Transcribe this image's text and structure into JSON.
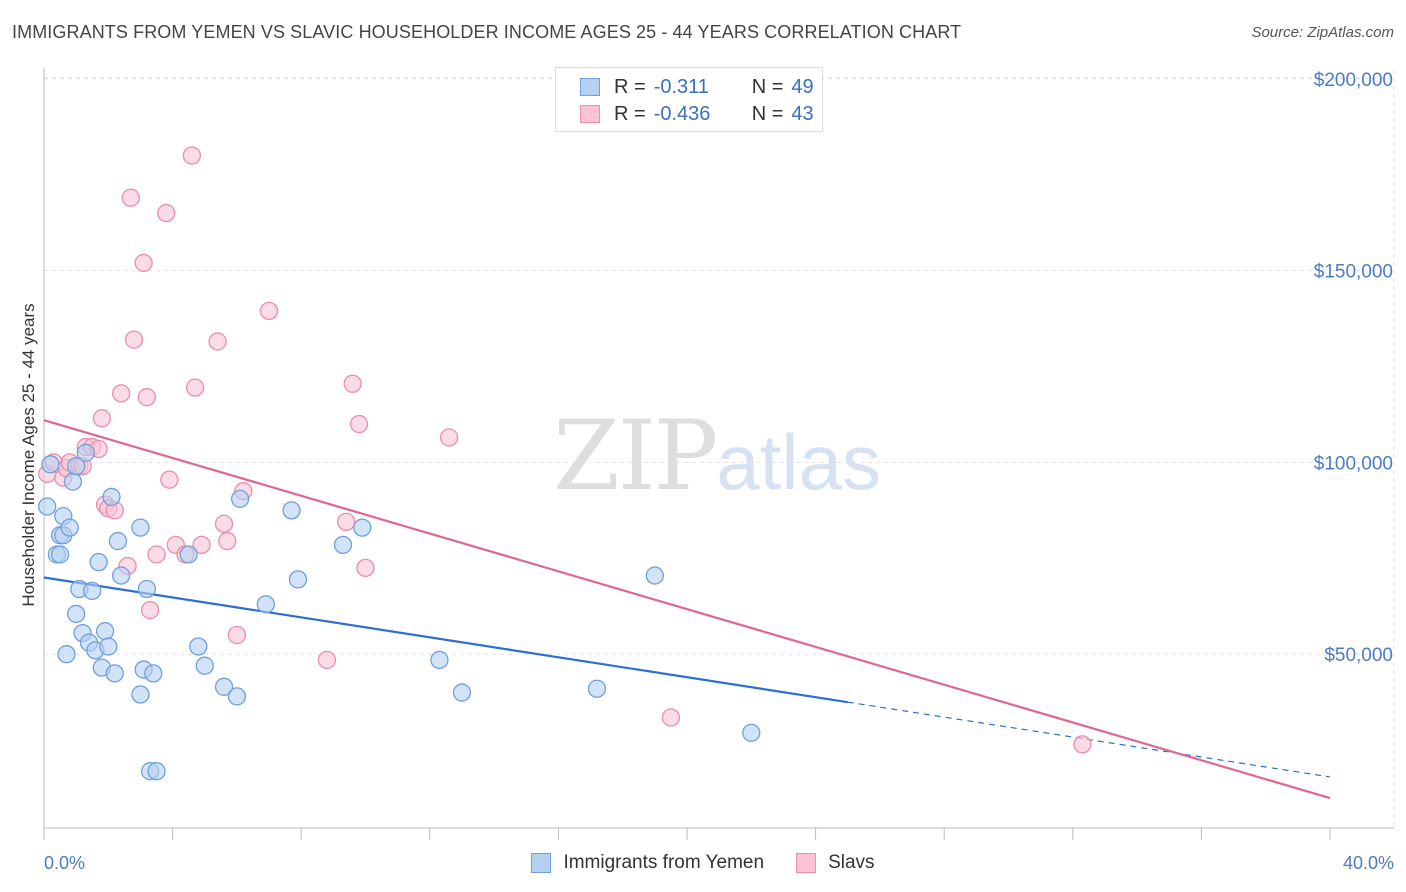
{
  "header": {
    "title": "IMMIGRANTS FROM YEMEN VS SLAVIC HOUSEHOLDER INCOME AGES 25 - 44 YEARS CORRELATION CHART",
    "source": "Source: ZipAtlas.com"
  },
  "legend": {
    "rows": [
      {
        "r_label": "R =",
        "r_value": "-0.311",
        "n_label": "N =",
        "n_value": "49"
      },
      {
        "r_label": "R =",
        "r_value": "-0.436",
        "n_label": "N =",
        "n_value": "43"
      }
    ]
  },
  "bottom_legend": [
    "Immigrants from Yemen",
    "Slavs"
  ],
  "watermark": {
    "zip": "ZIP",
    "atlas": "atlas"
  },
  "colors": {
    "series1_fill": "#b6d0f2",
    "series1_stroke": "#6f9fde",
    "series1_line": "#2c6fd1",
    "series2_fill": "#f9c3d3",
    "series2_stroke": "#ec8daa",
    "series2_line": "#e06690",
    "tick_text": "#4a7cc4",
    "grid": "#e2e2e2"
  },
  "chart_data": {
    "type": "scatter",
    "title": "IMMIGRANTS FROM YEMEN VS SLAVIC HOUSEHOLDER INCOME AGES 25 - 44 YEARS CORRELATION CHART",
    "xlabel": "",
    "ylabel": "Householder Income Ages 25 - 44 years",
    "xlim": [
      0,
      40
    ],
    "ylim": [
      0,
      205000
    ],
    "x_tick_labels": [
      "0.0%",
      "40.0%"
    ],
    "y_ticks": [
      50000,
      100000,
      150000,
      200000
    ],
    "y_tick_labels": [
      "$50,000",
      "$100,000",
      "$150,000",
      "$200,000"
    ],
    "series": [
      {
        "name": "Immigrants from Yemen",
        "r": -0.311,
        "n": 49,
        "trend": {
          "x0": 0,
          "y0": 70000,
          "x1": 40,
          "y1": 18000,
          "solid_until_x": 25
        },
        "points": [
          [
            0.1,
            88500
          ],
          [
            0.2,
            99500
          ],
          [
            0.5,
            81000
          ],
          [
            0.6,
            86000
          ],
          [
            0.4,
            76000
          ],
          [
            0.5,
            76000
          ],
          [
            0.6,
            81000
          ],
          [
            0.9,
            95000
          ],
          [
            0.8,
            83000
          ],
          [
            1.0,
            60500
          ],
          [
            1.2,
            55500
          ],
          [
            1.1,
            67000
          ],
          [
            1.5,
            66500
          ],
          [
            1.7,
            74000
          ],
          [
            1.4,
            53000
          ],
          [
            1.6,
            51000
          ],
          [
            1.8,
            46500
          ],
          [
            1.9,
            56000
          ],
          [
            2.0,
            52000
          ],
          [
            2.2,
            45000
          ],
          [
            1.3,
            102500
          ],
          [
            2.1,
            91000
          ],
          [
            2.3,
            79500
          ],
          [
            2.4,
            70500
          ],
          [
            3.0,
            83000
          ],
          [
            3.1,
            46000
          ],
          [
            3.2,
            67000
          ],
          [
            3.4,
            45000
          ],
          [
            3.3,
            19500
          ],
          [
            3.5,
            19500
          ],
          [
            3.0,
            39500
          ],
          [
            4.5,
            76000
          ],
          [
            4.8,
            52000
          ],
          [
            5.0,
            47000
          ],
          [
            5.6,
            41500
          ],
          [
            6.0,
            39000
          ],
          [
            6.1,
            90500
          ],
          [
            6.9,
            63000
          ],
          [
            7.7,
            87500
          ],
          [
            7.9,
            69500
          ],
          [
            9.3,
            78500
          ],
          [
            9.9,
            83000
          ],
          [
            12.3,
            48500
          ],
          [
            13.0,
            40000
          ],
          [
            17.2,
            41000
          ],
          [
            19.0,
            70500
          ],
          [
            22.0,
            29500
          ],
          [
            0.7,
            50000
          ],
          [
            1.0,
            99000
          ]
        ]
      },
      {
        "name": "Slavs",
        "r": -0.436,
        "n": 43,
        "trend": {
          "x0": 0,
          "y0": 111000,
          "x1": 40,
          "y1": 12500
        },
        "points": [
          [
            0.1,
            97000
          ],
          [
            0.3,
            100000
          ],
          [
            0.6,
            96000
          ],
          [
            0.7,
            98500
          ],
          [
            0.8,
            100000
          ],
          [
            1.1,
            99000
          ],
          [
            1.3,
            104000
          ],
          [
            1.5,
            104000
          ],
          [
            1.7,
            103500
          ],
          [
            1.8,
            111500
          ],
          [
            1.9,
            89000
          ],
          [
            2.0,
            88000
          ],
          [
            2.2,
            87500
          ],
          [
            2.4,
            118000
          ],
          [
            2.6,
            73000
          ],
          [
            2.7,
            169000
          ],
          [
            2.8,
            132000
          ],
          [
            3.1,
            152000
          ],
          [
            3.2,
            117000
          ],
          [
            3.3,
            61500
          ],
          [
            3.5,
            76000
          ],
          [
            3.8,
            165000
          ],
          [
            3.9,
            95500
          ],
          [
            4.1,
            78500
          ],
          [
            4.4,
            76000
          ],
          [
            4.6,
            180000
          ],
          [
            4.7,
            119500
          ],
          [
            4.9,
            78500
          ],
          [
            5.4,
            131500
          ],
          [
            5.6,
            84000
          ],
          [
            5.7,
            79500
          ],
          [
            6.0,
            55000
          ],
          [
            6.2,
            92500
          ],
          [
            7.0,
            139500
          ],
          [
            8.8,
            48500
          ],
          [
            9.4,
            84500
          ],
          [
            9.6,
            120500
          ],
          [
            9.8,
            110000
          ],
          [
            10.0,
            72500
          ],
          [
            12.6,
            106500
          ],
          [
            19.5,
            33500
          ],
          [
            32.3,
            26500
          ],
          [
            1.2,
            99000
          ]
        ]
      }
    ]
  }
}
